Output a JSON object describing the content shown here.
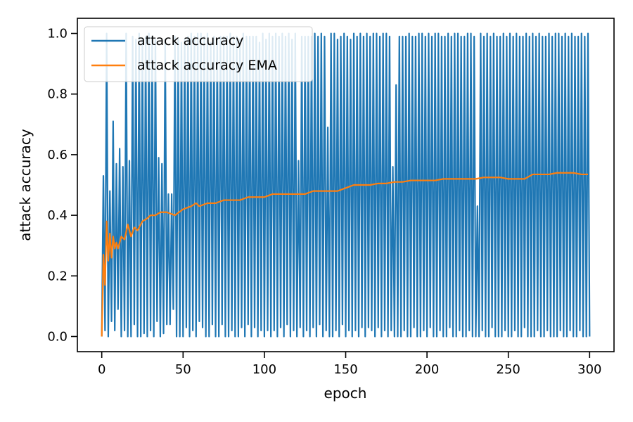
{
  "chart_data": {
    "type": "line",
    "title": "",
    "xlabel": "epoch",
    "ylabel": "attack accuracy",
    "xlim": [
      -15,
      315
    ],
    "ylim": [
      -0.05,
      1.05
    ],
    "x_ticks": [
      0,
      50,
      100,
      150,
      200,
      250,
      300
    ],
    "x_tick_labels": [
      "0",
      "50",
      "100",
      "150",
      "200",
      "250",
      "300"
    ],
    "y_ticks": [
      0.0,
      0.2,
      0.4,
      0.6,
      0.8,
      1.0
    ],
    "y_tick_labels": [
      "0.0",
      "0.2",
      "0.4",
      "0.6",
      "0.8",
      "1.0"
    ],
    "grid": false,
    "legend_position": "top-left",
    "series": [
      {
        "name": "attack accuracy",
        "color": "#1f77b4",
        "note_values": "oscillating series, epochs 0-299",
        "values": [
          0.0,
          0.53,
          0.02,
          1.0,
          0.0,
          0.48,
          0.05,
          0.71,
          0.02,
          0.57,
          0.09,
          0.62,
          0.0,
          0.56,
          0.02,
          1.0,
          0.0,
          0.58,
          0.0,
          0.99,
          0.04,
          0.98,
          0.0,
          1.0,
          0.0,
          0.98,
          0.01,
          0.99,
          0.0,
          1.0,
          0.02,
          0.99,
          0.0,
          0.98,
          0.05,
          0.59,
          0.0,
          0.57,
          0.01,
          0.98,
          0.04,
          0.47,
          0.04,
          0.47,
          0.09,
          0.99,
          0.0,
          0.98,
          0.0,
          0.97,
          0.0,
          0.98,
          0.03,
          0.99,
          0.0,
          1.0,
          0.02,
          0.99,
          0.0,
          1.0,
          0.05,
          1.0,
          0.03,
          0.99,
          0.0,
          1.0,
          0.0,
          0.97,
          0.04,
          0.99,
          0.0,
          0.98,
          0.0,
          0.99,
          0.04,
          0.99,
          0.0,
          0.99,
          0.0,
          1.0,
          0.02,
          0.99,
          0.0,
          0.99,
          0.0,
          0.98,
          0.03,
          1.0,
          0.0,
          0.99,
          0.04,
          0.99,
          0.0,
          0.99,
          0.03,
          0.99,
          0.0,
          0.97,
          0.02,
          1.0,
          0.0,
          0.98,
          0.02,
          1.0,
          0.0,
          0.99,
          0.02,
          1.0,
          0.0,
          0.99,
          0.03,
          1.0,
          0.0,
          0.99,
          0.04,
          1.0,
          0.0,
          0.98,
          0.02,
          1.0,
          0.0,
          0.58,
          0.03,
          0.99,
          0.0,
          0.99,
          0.02,
          0.99,
          0.0,
          0.99,
          0.03,
          1.0,
          0.0,
          0.99,
          0.04,
          1.0,
          0.0,
          0.99,
          0.02,
          0.69,
          0.0,
          1.0,
          0.0,
          1.0,
          0.02,
          0.98,
          0.0,
          0.99,
          0.04,
          1.0,
          0.0,
          0.99,
          0.02,
          0.98,
          0.0,
          1.0,
          0.02,
          0.99,
          0.0,
          1.0,
          0.03,
          0.99,
          0.0,
          1.0,
          0.03,
          0.99,
          0.02,
          1.0,
          0.0,
          1.0,
          0.03,
          0.99,
          0.0,
          1.0,
          0.02,
          1.0,
          0.0,
          0.99,
          0.02,
          0.56,
          0.0,
          0.83,
          0.0,
          0.99,
          0.0,
          0.99,
          0.02,
          0.99,
          0.0,
          1.0,
          0.0,
          0.99,
          0.03,
          0.99,
          0.0,
          1.0,
          0.0,
          1.0,
          0.02,
          0.99,
          0.0,
          1.0,
          0.03,
          0.99,
          0.0,
          1.0,
          0.0,
          1.0,
          0.02,
          0.99,
          0.0,
          0.99,
          0.0,
          1.0,
          0.03,
          0.99,
          0.0,
          1.0,
          0.0,
          1.0,
          0.02,
          0.99,
          0.0,
          0.99,
          0.0,
          1.0,
          0.02,
          1.0,
          0.0,
          0.99,
          0.0,
          0.43,
          0.0,
          1.0,
          0.02,
          0.99,
          0.0,
          1.0,
          0.0,
          0.99,
          0.03,
          1.0,
          0.0,
          0.99,
          0.0,
          0.99,
          0.0,
          1.0,
          0.02,
          0.99,
          0.0,
          1.0,
          0.0,
          0.99,
          0.02,
          1.0,
          0.0,
          0.99,
          0.0,
          0.99,
          0.03,
          1.0,
          0.0,
          0.99,
          0.0,
          1.0,
          0.0,
          0.99,
          0.02,
          1.0,
          0.0,
          0.99,
          0.0,
          0.99,
          0.02,
          1.0,
          0.0,
          0.99,
          0.0,
          1.0,
          0.0,
          1.0,
          0.02,
          0.99,
          0.0,
          1.0,
          0.0,
          0.99,
          0.02,
          1.0,
          0.0,
          0.99,
          0.0,
          0.99,
          0.02,
          1.0,
          0.0,
          0.99,
          0.0,
          1.0,
          0.0
        ]
      },
      {
        "name": "attack accuracy EMA",
        "color": "#ff7f0e",
        "x": [
          0,
          1,
          2,
          3,
          4,
          5,
          6,
          7,
          8,
          9,
          10,
          12,
          14,
          16,
          18,
          20,
          22,
          25,
          28,
          30,
          33,
          36,
          40,
          45,
          50,
          55,
          58,
          60,
          65,
          70,
          75,
          80,
          85,
          90,
          95,
          100,
          105,
          110,
          115,
          120,
          125,
          130,
          135,
          140,
          145,
          150,
          155,
          160,
          165,
          170,
          175,
          180,
          185,
          190,
          195,
          200,
          205,
          210,
          215,
          220,
          225,
          230,
          235,
          240,
          245,
          250,
          255,
          260,
          265,
          270,
          275,
          280,
          285,
          290,
          295,
          299
        ],
        "values": [
          0.0,
          0.27,
          0.17,
          0.38,
          0.25,
          0.34,
          0.26,
          0.33,
          0.29,
          0.31,
          0.29,
          0.33,
          0.32,
          0.37,
          0.33,
          0.36,
          0.35,
          0.38,
          0.39,
          0.4,
          0.4,
          0.41,
          0.41,
          0.4,
          0.42,
          0.43,
          0.44,
          0.43,
          0.44,
          0.44,
          0.45,
          0.45,
          0.45,
          0.46,
          0.46,
          0.46,
          0.47,
          0.47,
          0.47,
          0.47,
          0.47,
          0.48,
          0.48,
          0.48,
          0.48,
          0.49,
          0.5,
          0.5,
          0.5,
          0.505,
          0.505,
          0.51,
          0.51,
          0.515,
          0.515,
          0.515,
          0.515,
          0.52,
          0.52,
          0.52,
          0.52,
          0.52,
          0.525,
          0.525,
          0.525,
          0.52,
          0.52,
          0.52,
          0.535,
          0.535,
          0.535,
          0.54,
          0.54,
          0.54,
          0.535,
          0.535
        ]
      }
    ]
  }
}
